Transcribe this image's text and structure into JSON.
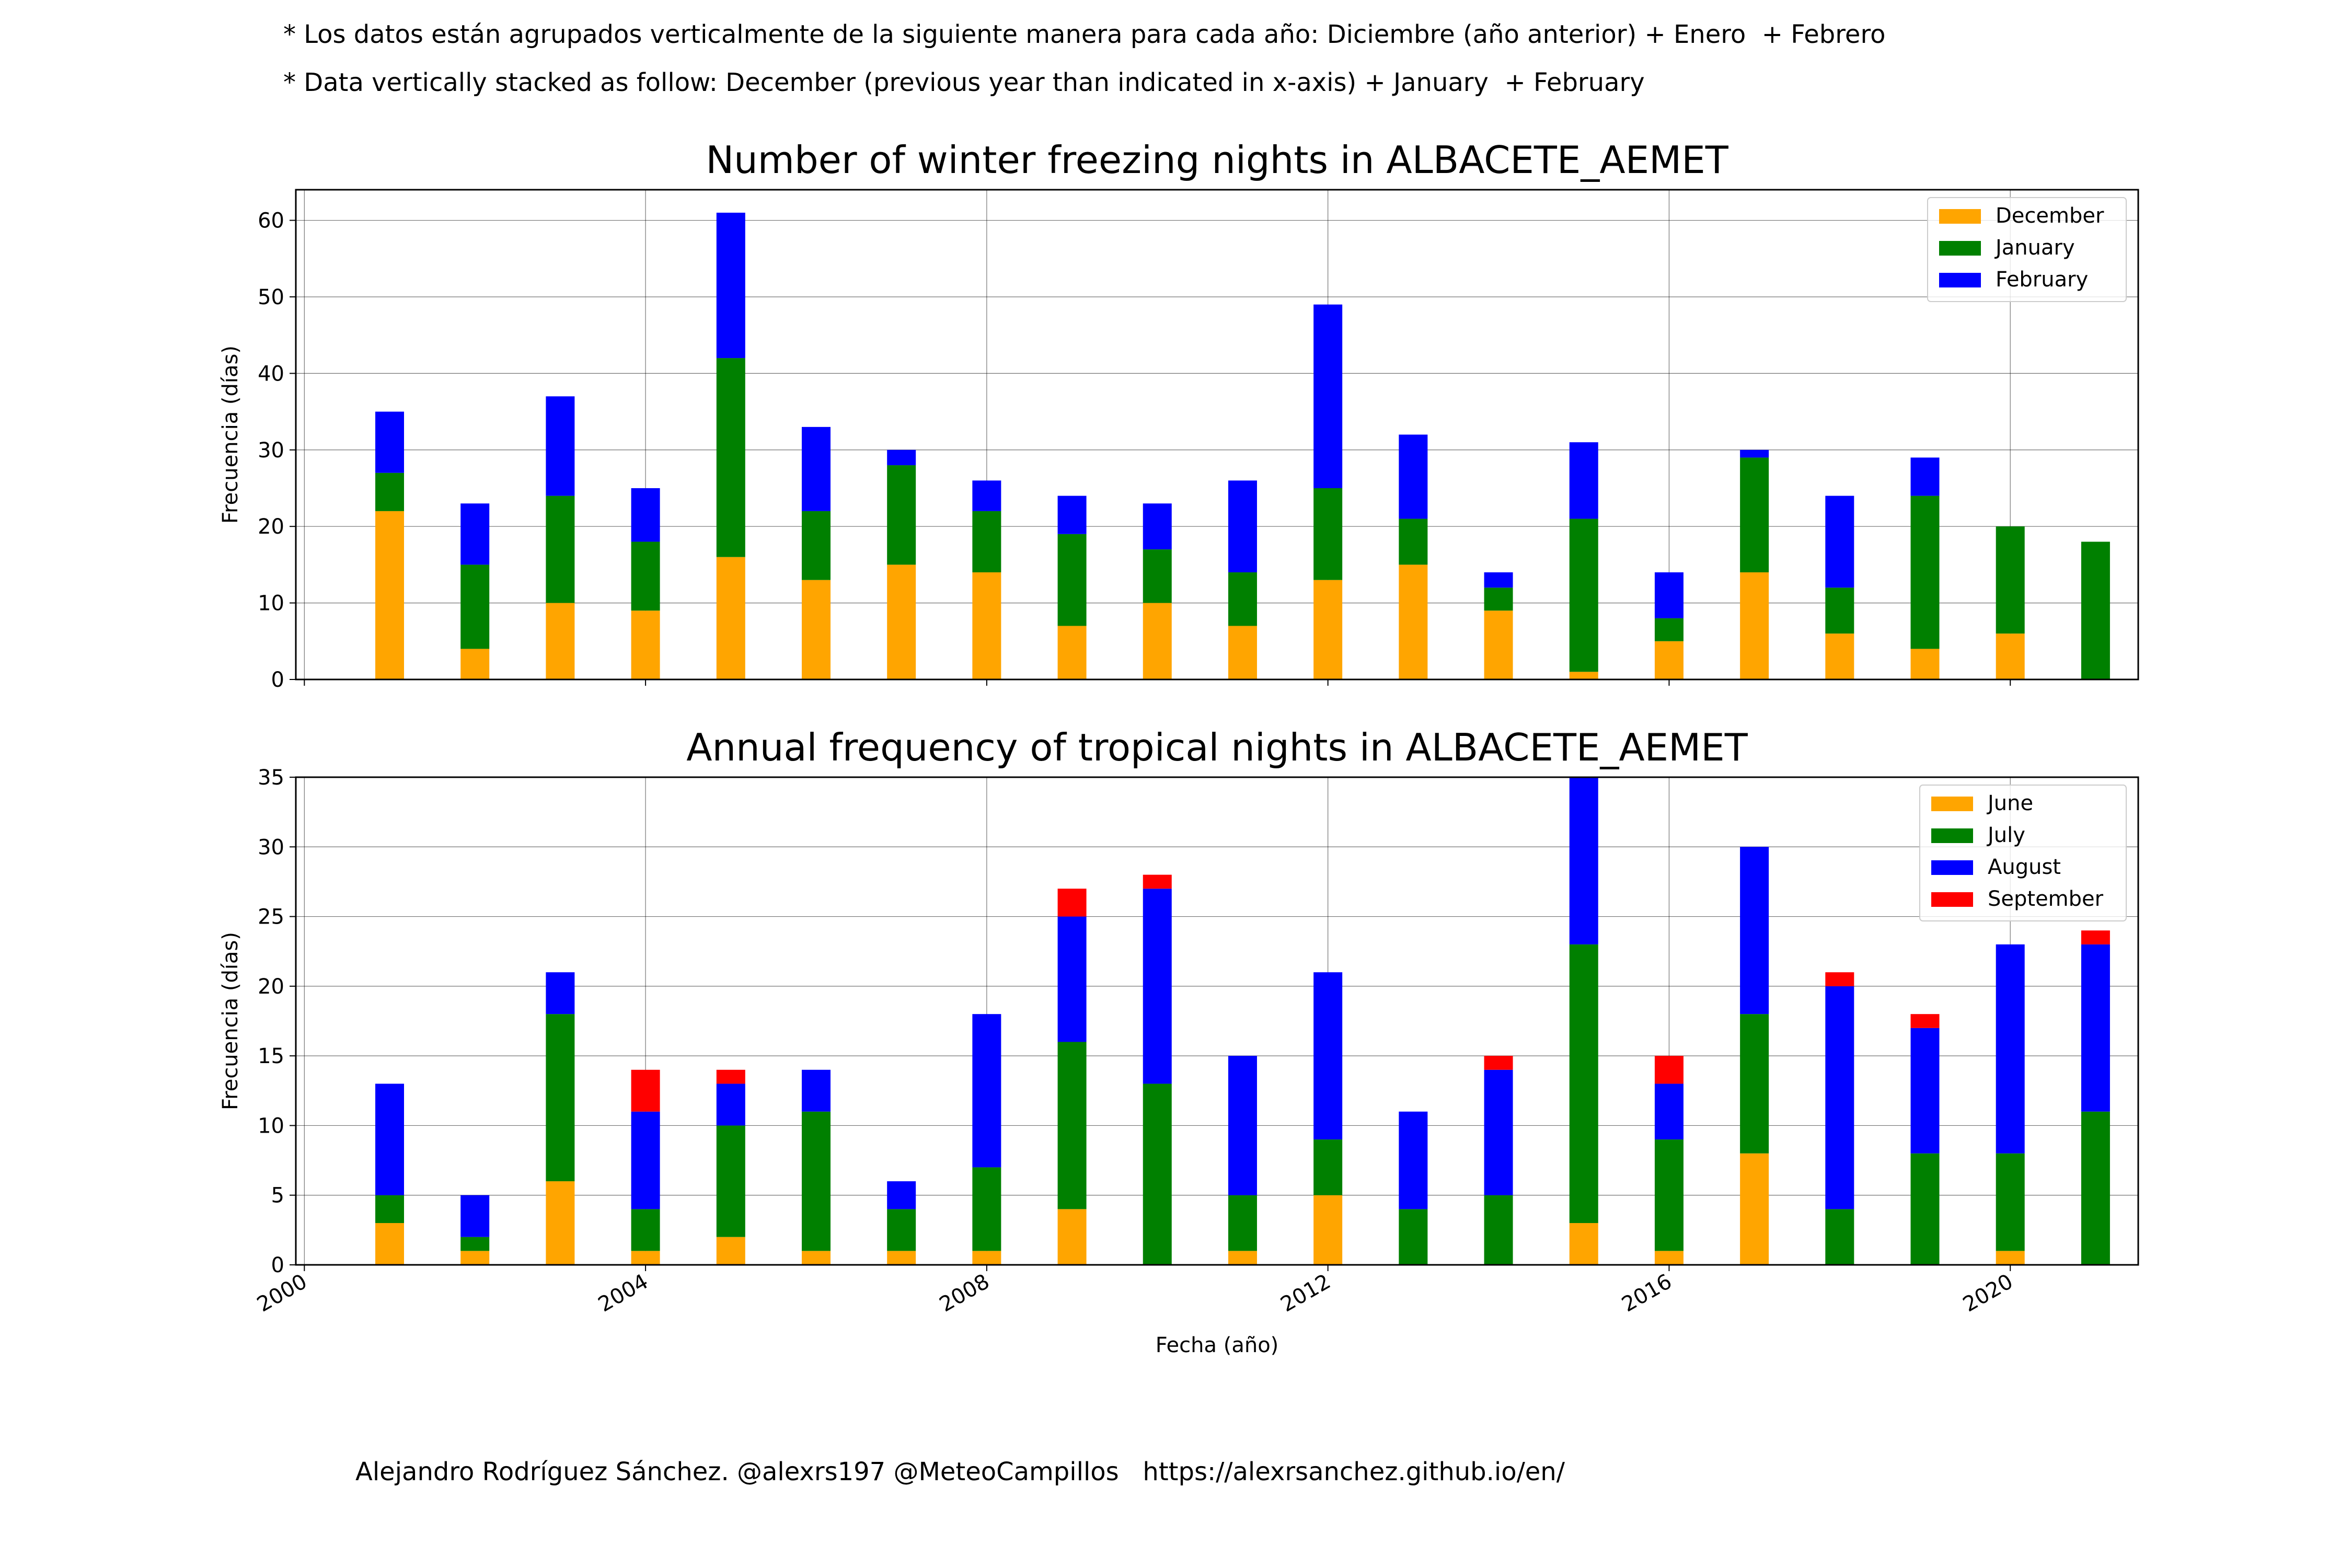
{
  "notes": {
    "line1": "* Los datos están agrupados verticalmente de la siguiente manera para cada año: Diciembre (año anterior) + Enero  + Febrero",
    "line2": "* Data vertically stacked as follow: December (previous year than indicated in x-axis) + January  + February"
  },
  "credit": "Alejandro Rodríguez Sánchez. @alexrs197 @MeteoCampillos   https://alexrsanchez.github.io/en/",
  "colors": {
    "orange": "#FFA500",
    "green": "#008000",
    "blue": "#0000FF",
    "red": "#FF0000"
  },
  "chart_data": [
    {
      "type": "bar",
      "stacked": true,
      "title": "Number of winter freezing nights in ALBACETE_AEMET",
      "ylabel": "Frecuencia (días)",
      "xlabel": "",
      "xlim": [
        1999.9,
        2021.5
      ],
      "ylim": [
        0,
        64
      ],
      "yticks": [
        0,
        10,
        20,
        30,
        40,
        50,
        60
      ],
      "xticks": [
        "2000",
        "2004",
        "2008",
        "2012",
        "2016",
        "2020"
      ],
      "x_tick_values": [
        2000,
        2004,
        2008,
        2012,
        2016,
        2020
      ],
      "show_x_tick_labels": false,
      "grid": true,
      "legend_position": "top-right",
      "categories": [
        2001,
        2002,
        2003,
        2004,
        2005,
        2006,
        2007,
        2008,
        2009,
        2010,
        2011,
        2012,
        2013,
        2014,
        2015,
        2016,
        2017,
        2018,
        2019,
        2020,
        2021
      ],
      "series": [
        {
          "name": "December",
          "color": "#FFA500",
          "values": [
            22,
            4,
            10,
            9,
            16,
            13,
            15,
            14,
            7,
            10,
            7,
            13,
            15,
            9,
            1,
            5,
            14,
            6,
            4,
            6,
            0
          ]
        },
        {
          "name": "January",
          "color": "#008000",
          "values": [
            5,
            11,
            14,
            9,
            26,
            9,
            13,
            8,
            12,
            7,
            7,
            12,
            6,
            3,
            20,
            3,
            15,
            6,
            20,
            14,
            18
          ]
        },
        {
          "name": "February",
          "color": "#0000FF",
          "values": [
            8,
            8,
            13,
            7,
            19,
            11,
            2,
            4,
            5,
            6,
            12,
            24,
            11,
            2,
            10,
            6,
            1,
            12,
            5,
            0,
            0
          ]
        }
      ]
    },
    {
      "type": "bar",
      "stacked": true,
      "title": "Annual frequency of tropical nights in ALBACETE_AEMET",
      "ylabel": "Frecuencia (días)",
      "xlabel": "Fecha (año)",
      "xlim": [
        1999.9,
        2021.5
      ],
      "ylim": [
        0,
        35
      ],
      "yticks": [
        0,
        5,
        10,
        15,
        20,
        25,
        30,
        35
      ],
      "xticks": [
        "2000",
        "2004",
        "2008",
        "2012",
        "2016",
        "2020"
      ],
      "x_tick_values": [
        2000,
        2004,
        2008,
        2012,
        2016,
        2020
      ],
      "show_x_tick_labels": true,
      "grid": true,
      "legend_position": "top-right",
      "categories": [
        2001,
        2002,
        2003,
        2004,
        2005,
        2006,
        2007,
        2008,
        2009,
        2010,
        2011,
        2012,
        2013,
        2014,
        2015,
        2016,
        2017,
        2018,
        2019,
        2020,
        2021
      ],
      "series": [
        {
          "name": "June",
          "color": "#FFA500",
          "values": [
            3,
            1,
            6,
            1,
            2,
            1,
            1,
            1,
            4,
            0,
            1,
            5,
            0,
            0,
            3,
            1,
            8,
            0,
            0,
            1,
            0
          ]
        },
        {
          "name": "July",
          "color": "#008000",
          "values": [
            2,
            1,
            12,
            3,
            8,
            10,
            3,
            6,
            12,
            13,
            4,
            4,
            4,
            5,
            20,
            8,
            10,
            4,
            8,
            7,
            11
          ]
        },
        {
          "name": "August",
          "color": "#0000FF",
          "values": [
            8,
            3,
            3,
            7,
            3,
            3,
            2,
            11,
            9,
            14,
            10,
            12,
            7,
            9,
            12,
            4,
            12,
            16,
            9,
            15,
            12
          ]
        },
        {
          "name": "September",
          "color": "#FF0000",
          "values": [
            0,
            0,
            0,
            3,
            1,
            0,
            0,
            0,
            2,
            1,
            0,
            0,
            0,
            1,
            0,
            2,
            0,
            1,
            1,
            0,
            1
          ]
        }
      ]
    }
  ]
}
